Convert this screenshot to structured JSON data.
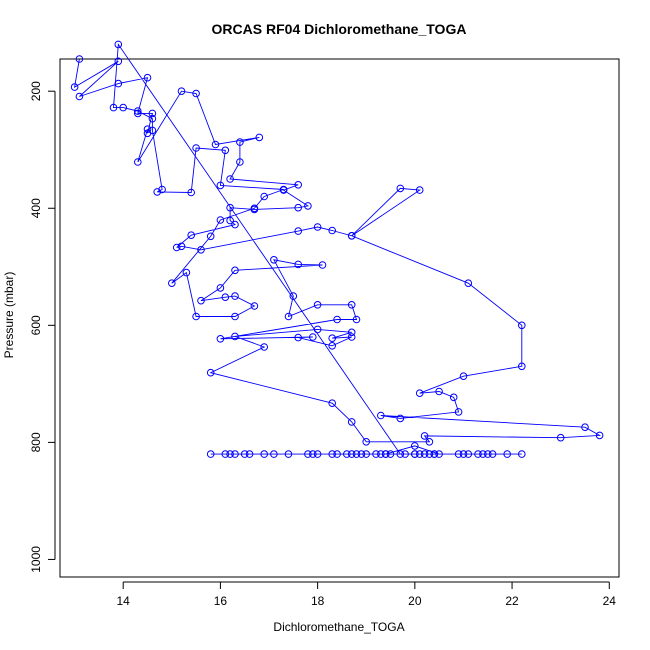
{
  "chart_data": {
    "type": "line",
    "title": "ORCAS RF04 Dichloromethane_TOGA",
    "xlabel": "Dichloromethane_TOGA",
    "ylabel": "Pressure (mbar)",
    "xlim": [
      12.7,
      24.2
    ],
    "ylim": [
      1030,
      145
    ],
    "y_reversed": true,
    "x_ticks": [
      "14",
      "16",
      "18",
      "20",
      "22",
      "24"
    ],
    "y_ticks": [
      "200",
      "400",
      "600",
      "800",
      "1000"
    ],
    "markers": "open-circle",
    "series_color": "#0000ff",
    "grid": false,
    "legend": "none",
    "series": [
      {
        "points": [
          [
            13.1,
            145
          ],
          [
            13.0,
            193
          ],
          [
            13.9,
            149
          ],
          [
            13.1,
            209
          ],
          [
            13.9,
            187
          ],
          [
            14.5,
            177
          ],
          [
            14.3,
            238
          ],
          [
            14.6,
            238
          ],
          [
            14.5,
            272
          ],
          [
            14.5,
            265
          ],
          [
            14.3,
            321
          ],
          [
            15.2,
            200
          ],
          [
            15.5,
            204
          ],
          [
            15.9,
            291
          ],
          [
            16.8,
            279
          ],
          [
            16.4,
            287
          ],
          [
            16.4,
            321
          ],
          [
            16.2,
            350
          ],
          [
            17.6,
            360
          ],
          [
            17.3,
            369
          ],
          [
            17.8,
            396
          ],
          [
            17.6,
            399
          ],
          [
            16.7,
            402
          ],
          [
            16.2,
            399
          ],
          [
            16.2,
            421
          ],
          [
            16.3,
            428
          ],
          [
            15.4,
            446
          ],
          [
            15.1,
            467
          ],
          [
            15.2,
            465
          ],
          [
            15.6,
            471
          ],
          [
            17.6,
            439
          ],
          [
            18.0,
            432
          ],
          [
            18.3,
            438
          ],
          [
            18.7,
            447
          ],
          [
            19.7,
            366
          ],
          [
            20.1,
            369
          ],
          [
            18.7,
            447
          ],
          [
            21.1,
            528
          ],
          [
            22.2,
            600
          ],
          [
            22.2,
            670
          ],
          [
            21.0,
            687
          ],
          [
            20.1,
            716
          ],
          [
            20.5,
            713
          ],
          [
            20.8,
            723
          ],
          [
            20.9,
            748
          ],
          [
            19.7,
            759
          ],
          [
            19.3,
            754
          ],
          [
            23.5,
            774
          ],
          [
            23.8,
            788
          ],
          [
            23.0,
            792
          ],
          [
            20.2,
            789
          ],
          [
            20.3,
            799
          ],
          [
            19.0,
            799
          ],
          [
            18.7,
            765
          ],
          [
            18.3,
            733
          ],
          [
            15.8,
            681
          ],
          [
            16.9,
            637
          ],
          [
            16.3,
            619
          ],
          [
            18.0,
            607
          ],
          [
            18.7,
            612
          ],
          [
            18.3,
            622
          ],
          [
            18.7,
            620
          ],
          [
            18.3,
            635
          ],
          [
            17.6,
            621
          ],
          [
            17.9,
            620
          ],
          [
            16.0,
            623
          ],
          [
            18.4,
            590
          ],
          [
            18.8,
            590
          ],
          [
            18.7,
            565
          ],
          [
            18.0,
            565
          ],
          [
            17.4,
            585
          ],
          [
            17.5,
            550
          ],
          [
            17.1,
            488
          ],
          [
            17.6,
            496
          ],
          [
            18.1,
            497
          ],
          [
            16.3,
            506
          ],
          [
            16.0,
            536
          ],
          [
            15.6,
            558
          ],
          [
            16.1,
            552
          ],
          [
            16.3,
            550
          ],
          [
            16.7,
            567
          ],
          [
            16.3,
            585
          ],
          [
            15.5,
            585
          ],
          [
            15.3,
            510
          ],
          [
            15.0,
            528
          ],
          [
            15.8,
            448
          ],
          [
            16.0,
            420
          ],
          [
            16.7,
            400
          ],
          [
            16.9,
            380
          ],
          [
            17.3,
            368
          ],
          [
            16.0,
            361
          ],
          [
            16.1,
            301
          ],
          [
            15.5,
            297
          ],
          [
            15.4,
            373
          ],
          [
            14.7,
            372
          ],
          [
            14.8,
            368
          ],
          [
            14.6,
            267
          ],
          [
            14.6,
            247
          ],
          [
            14.3,
            234
          ],
          [
            14.0,
            228
          ],
          [
            13.8,
            228
          ],
          [
            13.9,
            120
          ],
          [
            19.7,
            820
          ],
          [
            20.4,
            820
          ],
          [
            20.5,
            820
          ],
          [
            20.0,
            806
          ],
          [
            19.4,
            820
          ],
          [
            19.3,
            820
          ],
          [
            19.0,
            820
          ],
          [
            18.8,
            820
          ],
          [
            18.7,
            820
          ],
          [
            18.4,
            820
          ],
          [
            18.3,
            820
          ],
          [
            18.0,
            820
          ],
          [
            17.9,
            820
          ],
          [
            17.8,
            820
          ],
          [
            17.4,
            820
          ],
          [
            16.6,
            820
          ],
          [
            16.5,
            820
          ],
          [
            16.3,
            820
          ],
          [
            16.2,
            820
          ],
          [
            16.1,
            820
          ],
          [
            15.8,
            820
          ],
          [
            16.9,
            820
          ],
          [
            17.1,
            820
          ],
          [
            20.0,
            820
          ],
          [
            20.1,
            820
          ],
          [
            20.2,
            820
          ],
          [
            20.3,
            820
          ],
          [
            20.4,
            820
          ],
          [
            20.9,
            820
          ],
          [
            21.0,
            820
          ],
          [
            21.1,
            820
          ],
          [
            21.3,
            820
          ],
          [
            21.4,
            820
          ],
          [
            21.5,
            820
          ],
          [
            21.6,
            820
          ],
          [
            21.9,
            820
          ],
          [
            22.2,
            820
          ],
          [
            20.0,
            820
          ],
          [
            19.8,
            820
          ],
          [
            19.5,
            820
          ],
          [
            19.4,
            820
          ],
          [
            19.2,
            820
          ],
          [
            18.9,
            820
          ],
          [
            18.6,
            820
          ]
        ]
      }
    ]
  }
}
